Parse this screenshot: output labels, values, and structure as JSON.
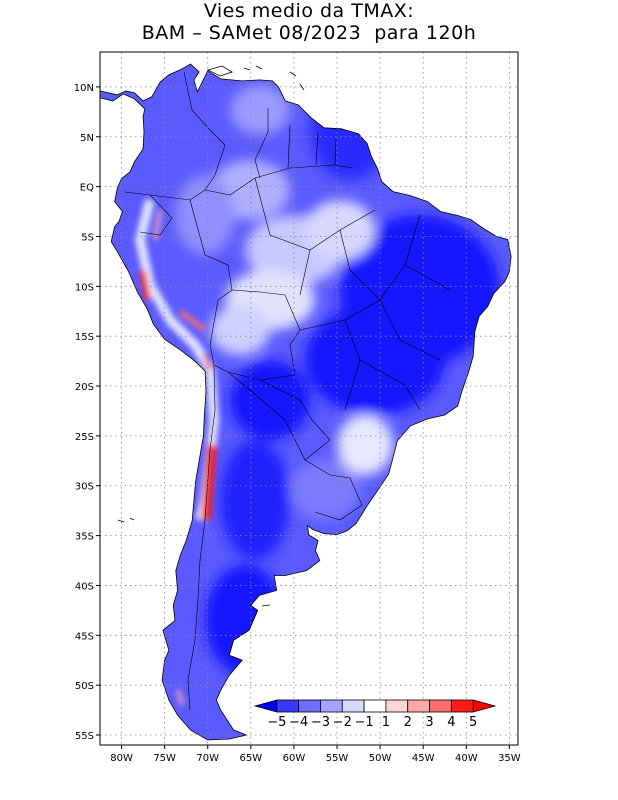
{
  "title": {
    "line1": "Vies medio da TMAX:",
    "line2": "BAM – SAMet 08/2023  para 120h"
  },
  "map": {
    "lat_ticks": [
      "10N",
      "5N",
      "EQ",
      "5S",
      "10S",
      "15S",
      "20S",
      "25S",
      "30S",
      "35S",
      "40S",
      "45S",
      "50S",
      "55S"
    ],
    "lon_ticks": [
      "80W",
      "75W",
      "70W",
      "65W",
      "60W",
      "55W",
      "50W",
      "45W",
      "40W",
      "35W"
    ],
    "lat_values": [
      10,
      5,
      0,
      -5,
      -10,
      -15,
      -20,
      -25,
      -30,
      -35,
      -40,
      -45,
      -50,
      -55
    ],
    "lon_values": [
      -80,
      -75,
      -70,
      -65,
      -60,
      -55,
      -50,
      -45,
      -40,
      -35
    ],
    "extent": {
      "lon_min": -82.5,
      "lon_max": -34,
      "lat_min": -56,
      "lat_max": 13.5
    }
  },
  "colorbar": {
    "labels": [
      "−5",
      "−4",
      "−3",
      "−2",
      "−1",
      "1",
      "2",
      "3",
      "4",
      "5"
    ],
    "colors": [
      "#0000ff",
      "#3a3aff",
      "#6e6eff",
      "#a4a4ff",
      "#d8d8ff",
      "#ffffff",
      "#ffd6d6",
      "#ffa8a8",
      "#ff6e6e",
      "#ff1a1a",
      "#ff0000"
    ]
  }
}
